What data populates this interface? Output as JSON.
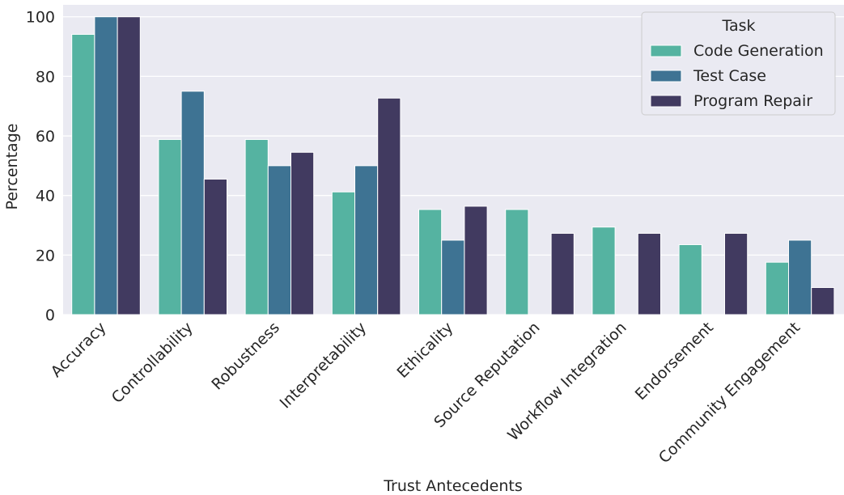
{
  "chart_data": {
    "type": "bar",
    "title": "",
    "xlabel": "Trust Antecedents",
    "ylabel": "Percentage",
    "ylim": [
      0,
      104
    ],
    "yticks": [
      0,
      20,
      40,
      60,
      80,
      100
    ],
    "grid": true,
    "legend_position": "top-right",
    "legend_title": "Task",
    "categories": [
      "Accuracy",
      "Controllability",
      "Robustness",
      "Interpretability",
      "Ethicality",
      "Source Reputation",
      "Workflow Integration",
      "Endorsement",
      "Community Engagement"
    ],
    "series": [
      {
        "name": "Code Generation",
        "color": "#55b3a1",
        "values": [
          94.1,
          58.8,
          58.8,
          41.2,
          35.3,
          35.3,
          29.4,
          23.5,
          17.6
        ]
      },
      {
        "name": "Test Case",
        "color": "#3e7393",
        "values": [
          100,
          75,
          50,
          50,
          25,
          0,
          0,
          0,
          25
        ]
      },
      {
        "name": "Program Repair",
        "color": "#413a60",
        "values": [
          100,
          45.5,
          54.5,
          72.7,
          36.4,
          27.3,
          27.3,
          27.3,
          9.1
        ]
      }
    ]
  }
}
